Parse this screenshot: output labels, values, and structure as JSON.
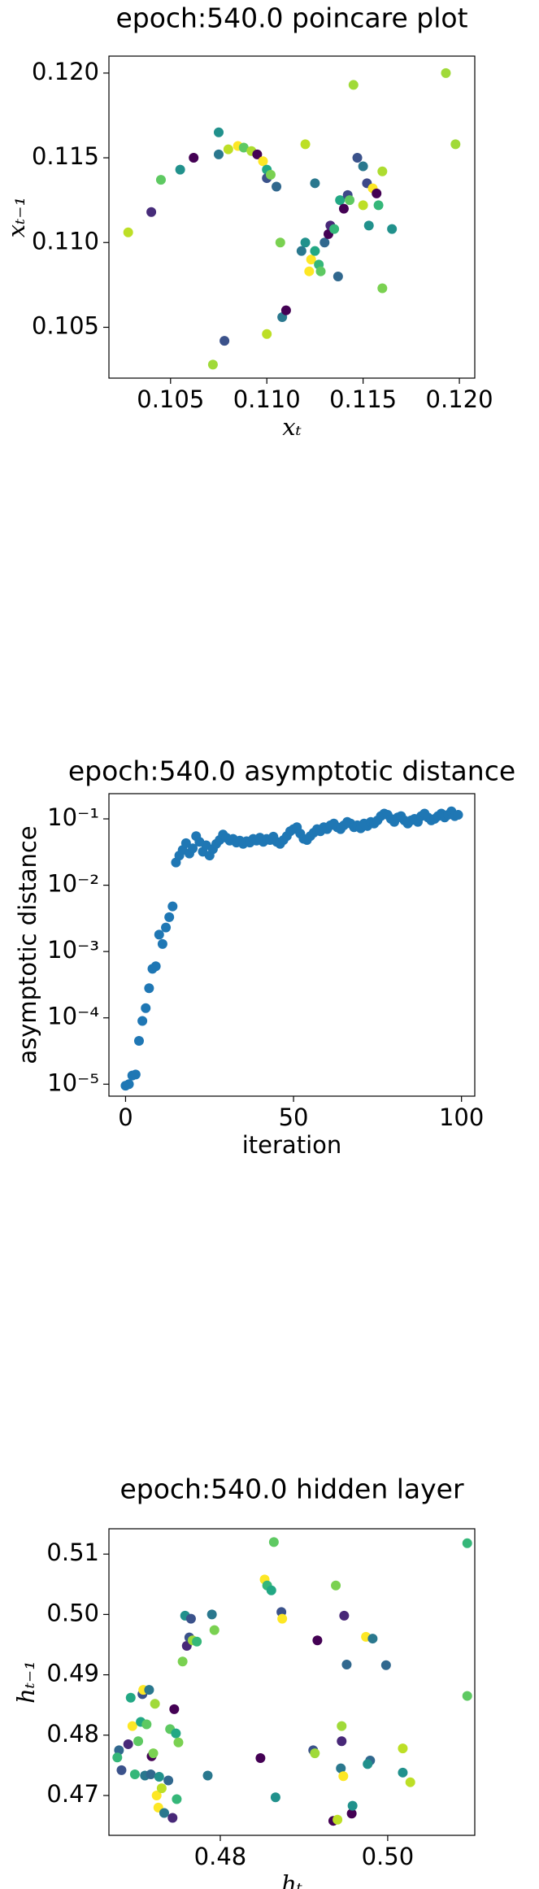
{
  "chart_data": [
    {
      "type": "scatter",
      "title": "epoch:540.0 poincare plot",
      "xlabel": "xₜ",
      "ylabel": "xₜ₋₁",
      "x": [
        0.1028,
        0.104,
        0.1045,
        0.1055,
        0.1062,
        0.1072,
        0.1078,
        0.1075,
        0.1075,
        0.108,
        0.1085,
        0.1088,
        0.1092,
        0.1095,
        0.1098,
        0.11,
        0.11,
        0.1102,
        0.1105,
        0.11,
        0.1108,
        0.111,
        0.1107,
        0.112,
        0.1122,
        0.1123,
        0.1125,
        0.1127,
        0.1128,
        0.1125,
        0.113,
        0.1132,
        0.1133,
        0.1135,
        0.1137,
        0.1138,
        0.114,
        0.1142,
        0.1143,
        0.1145,
        0.1147,
        0.115,
        0.115,
        0.1152,
        0.1155,
        0.1157,
        0.1158,
        0.1153,
        0.116,
        0.116,
        0.1165,
        0.1193,
        0.1198,
        0.1118,
        0.112
      ],
      "y": [
        0.1106,
        0.1118,
        0.1137,
        0.1143,
        0.115,
        0.1028,
        0.1042,
        0.1165,
        0.1152,
        0.1155,
        0.1157,
        0.1156,
        0.1154,
        0.1152,
        0.1148,
        0.1143,
        0.1138,
        0.114,
        0.1133,
        0.1046,
        0.1056,
        0.106,
        0.11,
        0.1158,
        0.1083,
        0.109,
        0.1095,
        0.1087,
        0.1083,
        0.1135,
        0.11,
        0.1105,
        0.111,
        0.1108,
        0.108,
        0.1125,
        0.112,
        0.1128,
        0.1125,
        0.1193,
        0.115,
        0.1145,
        0.1122,
        0.1135,
        0.1132,
        0.1129,
        0.1122,
        0.111,
        0.1142,
        0.1073,
        0.1108,
        0.12,
        0.1158,
        0.1095,
        0.11
      ],
      "colors": [
        "#bddf26",
        "#472c7a",
        "#5ec962",
        "#21918c",
        "#440154",
        "#a0da39",
        "#3b528b",
        "#21918c",
        "#2a788e",
        "#bddf26",
        "#fde725",
        "#5ec962",
        "#addc30",
        "#440154",
        "#fde725",
        "#22a884",
        "#3b528b",
        "#7ad151",
        "#31688e",
        "#bddf26",
        "#2a788e",
        "#440154",
        "#7ad151",
        "#bddf26",
        "#fde725",
        "#fde725",
        "#22a884",
        "#35b779",
        "#5ec962",
        "#2a788e",
        "#31688e",
        "#440154",
        "#482878",
        "#35b779",
        "#31688e",
        "#22a884",
        "#440154",
        "#3e4989",
        "#5ec962",
        "#a0da39",
        "#3b528b",
        "#2a788e",
        "#bddf26",
        "#3e4989",
        "#fde725",
        "#440154",
        "#35b779",
        "#21918c",
        "#addc30",
        "#7ad151",
        "#21918c",
        "#a0da39",
        "#a0da39",
        "#2a788e",
        "#21918c"
      ],
      "xlim": [
        0.1018,
        0.1208
      ],
      "ylim": [
        0.102,
        0.121
      ],
      "xticks": [
        0.105,
        {
          "value": 0.11,
          "label": "0.110"
        },
        0.115,
        {
          "value": 0.12,
          "label": "0.120"
        }
      ],
      "yticks": [
        0.105,
        {
          "value": 0.11,
          "label": "0.110"
        },
        0.115,
        {
          "value": 0.12,
          "label": "0.120"
        }
      ]
    },
    {
      "type": "scatter",
      "title": "epoch:540.0 asymptotic distance",
      "xlabel": "iteration",
      "ylabel": "asymptotic distance",
      "yscale": "log",
      "color": "#1f77b4",
      "x": [
        0,
        1,
        2,
        3,
        4,
        5,
        6,
        7,
        8,
        9,
        10,
        11,
        12,
        13,
        14,
        15,
        16,
        17,
        18,
        19,
        20,
        21,
        22,
        23,
        24,
        25,
        26,
        27,
        28,
        29,
        30,
        31,
        32,
        33,
        34,
        35,
        36,
        37,
        38,
        39,
        40,
        41,
        42,
        43,
        44,
        45,
        46,
        47,
        48,
        49,
        50,
        51,
        52,
        53,
        54,
        55,
        56,
        57,
        58,
        59,
        60,
        61,
        62,
        63,
        64,
        65,
        66,
        67,
        68,
        69,
        70,
        71,
        72,
        73,
        74,
        75,
        76,
        77,
        78,
        79,
        80,
        81,
        82,
        83,
        84,
        85,
        86,
        87,
        88,
        89,
        90,
        91,
        92,
        93,
        94,
        95,
        96,
        97,
        98,
        99
      ],
      "y": [
        9.5e-06,
        1e-05,
        1.35e-05,
        1.4e-05,
        4.5e-05,
        9e-05,
        0.00014,
        0.00028,
        0.00055,
        0.0006,
        0.0018,
        0.0013,
        0.0023,
        0.0033,
        0.0048,
        0.022,
        0.028,
        0.034,
        0.043,
        0.03,
        0.036,
        0.055,
        0.045,
        0.032,
        0.04,
        0.028,
        0.035,
        0.042,
        0.048,
        0.058,
        0.052,
        0.047,
        0.05,
        0.044,
        0.047,
        0.042,
        0.046,
        0.044,
        0.05,
        0.047,
        0.052,
        0.045,
        0.05,
        0.048,
        0.054,
        0.045,
        0.042,
        0.048,
        0.055,
        0.065,
        0.07,
        0.075,
        0.06,
        0.05,
        0.048,
        0.055,
        0.062,
        0.07,
        0.065,
        0.075,
        0.07,
        0.08,
        0.085,
        0.075,
        0.07,
        0.08,
        0.09,
        0.085,
        0.075,
        0.08,
        0.072,
        0.085,
        0.078,
        0.09,
        0.085,
        0.095,
        0.11,
        0.12,
        0.115,
        0.1,
        0.09,
        0.105,
        0.11,
        0.095,
        0.085,
        0.095,
        0.1,
        0.09,
        0.11,
        0.12,
        0.105,
        0.095,
        0.1,
        0.11,
        0.12,
        0.105,
        0.115,
        0.13,
        0.11,
        0.115
      ],
      "xlim": [
        -4.95,
        103.95
      ],
      "ylim": [
        6.6e-06,
        0.24
      ],
      "xticks": [
        0,
        50,
        100
      ],
      "yticks": [
        {
          "value": 1e-05,
          "label": "10⁻⁵"
        },
        {
          "value": 0.0001,
          "label": "10⁻⁴"
        },
        {
          "value": 0.001,
          "label": "10⁻³"
        },
        {
          "value": 0.01,
          "label": "10⁻²"
        },
        {
          "value": 0.1,
          "label": "10⁻¹"
        }
      ]
    },
    {
      "type": "scatter",
      "title": "epoch:540.0 hidden layer",
      "xlabel": "hₜ",
      "ylabel": "hₜ₋₁",
      "x": [
        0.4679,
        0.4677,
        0.4682,
        0.469,
        0.4693,
        0.4695,
        0.4698,
        0.4702,
        0.4705,
        0.4707,
        0.4708,
        0.471,
        0.4712,
        0.4715,
        0.4717,
        0.4718,
        0.472,
        0.4722,
        0.4724,
        0.4726,
        0.4727,
        0.473,
        0.4733,
        0.4738,
        0.474,
        0.4743,
        0.4745,
        0.4747,
        0.4748,
        0.475,
        0.4755,
        0.4758,
        0.476,
        0.4763,
        0.4765,
        0.4767,
        0.4772,
        0.4785,
        0.479,
        0.4793,
        0.4848,
        0.4853,
        0.4856,
        0.4861,
        0.4864,
        0.4866,
        0.4873,
        0.4874,
        0.4916,
        0.4911,
        0.4913,
        0.4938,
        0.4935,
        0.494,
        0.4944,
        0.4945,
        0.4948,
        0.4945,
        0.4947,
        0.4951,
        0.4957,
        0.4958,
        0.4974,
        0.4982,
        0.4979,
        0.4976,
        0.4998,
        0.5018,
        0.5018,
        0.5027,
        0.5095,
        0.5095
      ],
      "y": [
        0.4775,
        0.4763,
        0.4742,
        0.4785,
        0.4862,
        0.4815,
        0.4735,
        0.479,
        0.4822,
        0.4868,
        0.4875,
        0.4733,
        0.4818,
        0.4875,
        0.4735,
        0.4765,
        0.477,
        0.4852,
        0.47,
        0.468,
        0.4731,
        0.4712,
        0.4671,
        0.4725,
        0.481,
        0.4663,
        0.4843,
        0.4803,
        0.4694,
        0.4788,
        0.4922,
        0.4998,
        0.4948,
        0.4962,
        0.4993,
        0.4957,
        0.4955,
        0.4733,
        0.5,
        0.4974,
        0.4762,
        0.5058,
        0.5048,
        0.504,
        0.512,
        0.4697,
        0.5004,
        0.4993,
        0.4957,
        0.4775,
        0.477,
        0.5048,
        0.4658,
        0.466,
        0.4745,
        0.479,
        0.4998,
        0.4815,
        0.4732,
        0.4917,
        0.467,
        0.4683,
        0.4963,
        0.496,
        0.4758,
        0.4752,
        0.4916,
        0.4778,
        0.4738,
        0.4722,
        0.5118,
        0.4865
      ],
      "colors": [
        "#31688e",
        "#35b779",
        "#3b528b",
        "#482878",
        "#22a884",
        "#fde725",
        "#35b779",
        "#5ec962",
        "#22a884",
        "#3b528b",
        "#fde725",
        "#2a788e",
        "#5ec962",
        "#2a788e",
        "#31688e",
        "#440154",
        "#7ad151",
        "#a0da39",
        "#fde725",
        "#fde725",
        "#21918c",
        "#bddf26",
        "#2a788e",
        "#31688e",
        "#5ec962",
        "#482878",
        "#440154",
        "#22a884",
        "#35b779",
        "#7ad151",
        "#7ad151",
        "#21918c",
        "#482878",
        "#3b528b",
        "#3b528b",
        "#a0da39",
        "#35b779",
        "#2a788e",
        "#2a788e",
        "#7ad151",
        "#440154",
        "#fde725",
        "#35b779",
        "#22a884",
        "#5ec962",
        "#21918c",
        "#3b528b",
        "#fde725",
        "#440154",
        "#3b528b",
        "#a0da39",
        "#7ad151",
        "#440154",
        "#bddf26",
        "#2a788e",
        "#482878",
        "#482878",
        "#a0da39",
        "#fde725",
        "#31688e",
        "#440154",
        "#21918c",
        "#fde725",
        "#2a788e",
        "#31688e",
        "#21918c",
        "#31688e",
        "#bddf26",
        "#21918c",
        "#bddf26",
        "#35b779",
        "#5ec962"
      ],
      "xlim": [
        0.4667,
        0.5104
      ],
      "ylim": [
        0.4634,
        0.5142
      ],
      "xticks": [
        0.48,
        {
          "value": 0.5,
          "label": "0.50"
        }
      ],
      "yticks": [
        0.47,
        0.48,
        0.49,
        {
          "value": 0.5,
          "label": "0.50"
        },
        0.51
      ]
    }
  ]
}
